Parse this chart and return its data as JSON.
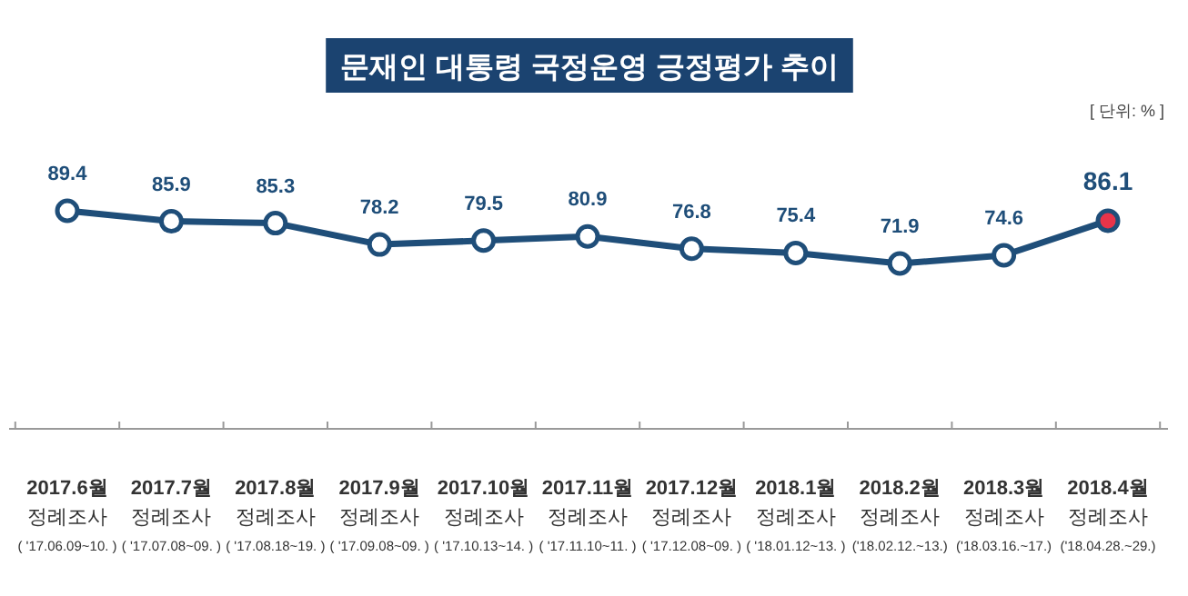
{
  "chart_data": {
    "type": "line",
    "title": "문재인 대통령 국정운영 긍정평가 추이",
    "annotations": [
      "[ 단위: % ]"
    ],
    "categories": [
      "2017.6월\n정례조사\n( '17.06.09~10. )",
      "2017.7월\n정례조사\n( '17.07.08~09. )",
      "2017.8월\n정례조사\n( '17.08.18~19. )",
      "2017.9월\n정례조사\n( '17.09.08~09. )",
      "2017.10월\n정례조사\n( '17.10.13~14. )",
      "2017.11월\n정례조사\n( '17.11.10~11. )",
      "2017.12월\n정례조사\n( '17.12.08~09. )",
      "2018.1월\n정례조사\n( '18.01.12~13. )",
      "2018.2월\n정례조사\n('18.02.12.~13.)",
      "2018.3월\n정례조사\n('18.03.16.~17.)",
      "2018.4월\n정례조사\n('18.04.28.~29.)"
    ],
    "series": [
      {
        "color": "#1f4e79",
        "colors": [
          "#ffffff",
          "#ffffff",
          "#ffffff",
          "#ffffff",
          "#ffffff",
          "#ffffff",
          "#ffffff",
          "#ffffff",
          "#ffffff",
          "#ffffff",
          "#e8344a"
        ],
        "values": [
          89.4,
          85.9,
          85.3,
          78.2,
          79.5,
          80.9,
          76.8,
          75.4,
          71.9,
          74.6,
          86.1
        ]
      }
    ],
    "data_labels": true,
    "marker": "circle",
    "line_style": "solid",
    "tick_labels": "x",
    "grid": false
  }
}
